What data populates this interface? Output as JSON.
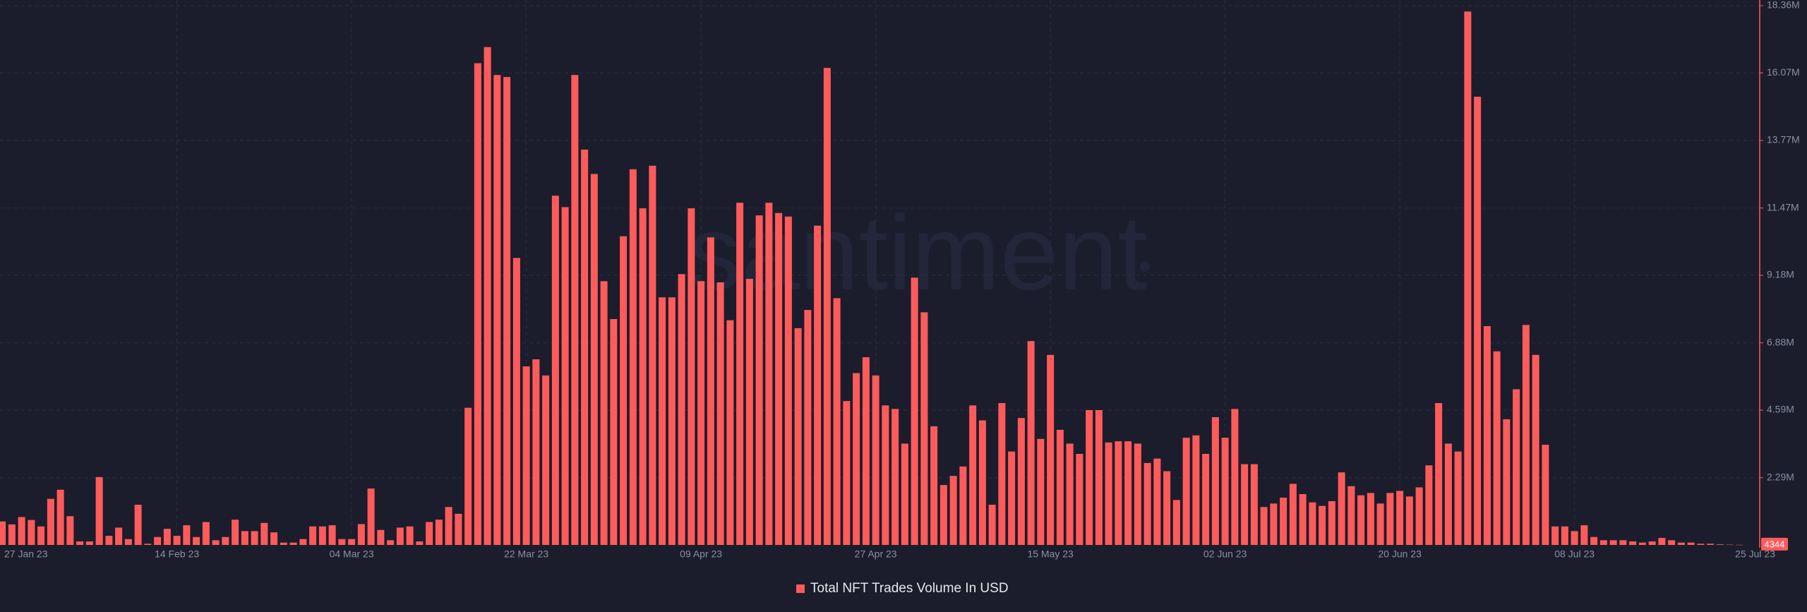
{
  "chart_data": {
    "type": "bar",
    "watermark": "santiment",
    "categories": [
      "27 Jan 23",
      null,
      null,
      null,
      null,
      null,
      null,
      null,
      null,
      null,
      null,
      null,
      null,
      null,
      null,
      null,
      null,
      null,
      "14 Feb 23",
      null,
      null,
      null,
      null,
      null,
      null,
      null,
      null,
      null,
      null,
      null,
      null,
      null,
      null,
      null,
      null,
      null,
      "04 Mar 23",
      null,
      null,
      null,
      null,
      null,
      null,
      null,
      null,
      null,
      null,
      null,
      null,
      null,
      null,
      null,
      null,
      null,
      "22 Mar 23",
      null,
      null,
      null,
      null,
      null,
      null,
      null,
      null,
      null,
      null,
      null,
      null,
      null,
      null,
      null,
      null,
      null,
      "09 Apr 23",
      null,
      null,
      null,
      null,
      null,
      null,
      null,
      null,
      null,
      null,
      null,
      null,
      null,
      null,
      null,
      null,
      null,
      "27 Apr 23",
      null,
      null,
      null,
      null,
      null,
      null,
      null,
      null,
      null,
      null,
      null,
      null,
      null,
      null,
      null,
      null,
      null,
      "15 May 23",
      null,
      null,
      null,
      null,
      null,
      null,
      null,
      null,
      null,
      null,
      null,
      null,
      null,
      null,
      null,
      null,
      null,
      "02 Jun 23",
      null,
      null,
      null,
      null,
      null,
      null,
      null,
      null,
      null,
      null,
      null,
      null,
      null,
      null,
      null,
      null,
      null,
      "20 Jun 23",
      null,
      null,
      null,
      null,
      null,
      null,
      null,
      null,
      null,
      null,
      null,
      null,
      null,
      null,
      null,
      null,
      null,
      "08 Jul 23",
      null,
      null,
      null,
      null,
      null,
      null,
      null,
      null,
      null,
      null,
      null,
      null,
      null,
      null,
      null,
      null,
      "25 Jul 23"
    ],
    "series": [
      {
        "name": "Total NFT Trades Volume In USD",
        "color": "#ff5b5b",
        "values": [
          800000,
          700000,
          950000,
          850000,
          630000,
          1570000,
          1880000,
          980000,
          120000,
          120000,
          2310000,
          310000,
          590000,
          200000,
          1370000,
          40000,
          270000,
          550000,
          310000,
          670000,
          270000,
          780000,
          160000,
          270000,
          860000,
          470000,
          470000,
          750000,
          430000,
          80000,
          80000,
          200000,
          630000,
          630000,
          670000,
          200000,
          200000,
          710000,
          1920000,
          510000,
          160000,
          590000,
          630000,
          120000,
          780000,
          860000,
          1290000,
          1060000,
          4670000,
          16400000,
          16950000,
          16000000,
          15930000,
          9770000,
          6080000,
          6320000,
          5770000,
          11890000,
          11500000,
          16000000,
          13460000,
          12630000,
          8980000,
          7690000,
          10510000,
          12790000,
          11460000,
          12910000,
          8430000,
          8430000,
          9220000,
          11460000,
          8980000,
          10470000,
          8940000,
          7650000,
          11650000,
          9060000,
          11220000,
          11650000,
          11300000,
          11180000,
          7380000,
          8000000,
          10870000,
          16240000,
          8400000,
          4900000,
          5850000,
          6390000,
          5770000,
          4750000,
          4630000,
          3450000,
          9100000,
          7920000,
          4040000,
          2040000,
          2350000,
          2670000,
          4750000,
          4240000,
          1370000,
          4830000,
          3180000,
          4320000,
          6940000,
          3610000,
          6470000,
          3920000,
          3450000,
          3100000,
          4590000,
          4590000,
          3490000,
          3530000,
          3530000,
          3450000,
          2790000,
          2940000,
          2510000,
          1530000,
          3650000,
          3730000,
          3100000,
          4350000,
          3650000,
          4630000,
          2750000,
          2750000,
          1290000,
          1410000,
          1610000,
          2080000,
          1730000,
          1450000,
          1330000,
          1490000,
          2470000,
          2000000,
          1690000,
          1770000,
          1410000,
          1770000,
          1840000,
          1650000,
          1960000,
          2710000,
          4830000,
          3450000,
          3180000,
          18160000,
          15260000,
          7450000,
          6590000,
          4280000,
          5300000,
          7490000,
          6470000,
          3410000,
          630000,
          630000,
          470000,
          670000,
          270000,
          160000,
          160000,
          160000,
          120000,
          80000,
          120000,
          240000,
          160000,
          80000,
          80000,
          40000,
          40000,
          20000,
          10000,
          4344
        ]
      }
    ],
    "ylim": [
      0,
      18360000
    ],
    "yticks": [
      {
        "value": 2290000,
        "label": "2.29M"
      },
      {
        "value": 4590000,
        "label": "4.59M"
      },
      {
        "value": 6880000,
        "label": "6.88M"
      },
      {
        "value": 9180000,
        "label": "9.18M"
      },
      {
        "value": 11470000,
        "label": "11.47M"
      },
      {
        "value": 13770000,
        "label": "13.77M"
      },
      {
        "value": 16070000,
        "label": "16.07M"
      },
      {
        "value": 18360000,
        "label": "18.36M"
      }
    ],
    "grid": true
  }
}
